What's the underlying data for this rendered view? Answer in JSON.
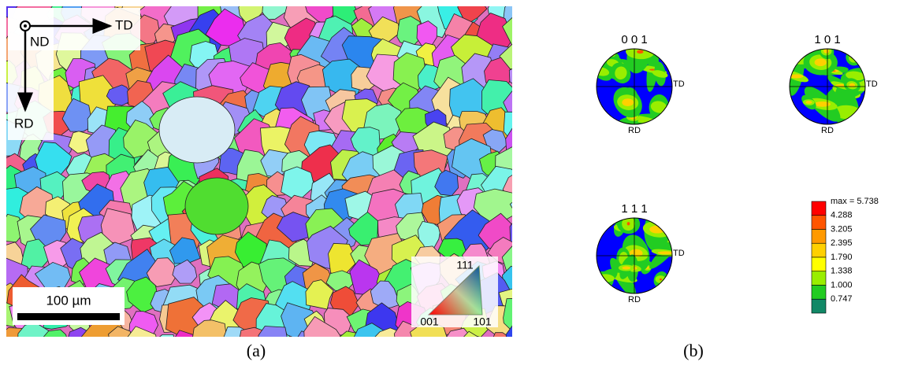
{
  "panel_a": {
    "orientation": {
      "nd": "ND",
      "td": "TD",
      "rd": "RD"
    },
    "scale_bar": "100 µm",
    "ipf_key": {
      "top": "111",
      "left": "001",
      "right": "101"
    },
    "caption": "(a)"
  },
  "panel_b": {
    "pole_figures": [
      {
        "title": "0 0 1",
        "x_label": "TD",
        "y_label": "RD"
      },
      {
        "title": "1 0 1",
        "x_label": "TD",
        "y_label": "RD"
      },
      {
        "title": "1 1 1",
        "x_label": "TD",
        "y_label": "RD"
      }
    ],
    "legend": {
      "max_label": "max = 5.738",
      "levels": [
        "4.288",
        "3.205",
        "2.395",
        "1.790",
        "1.338",
        "1.000",
        "0.747"
      ],
      "colors": [
        "#ff0000",
        "#ff5500",
        "#ff9900",
        "#ffd000",
        "#ffff00",
        "#99ee00",
        "#22cc22",
        "#118866",
        "#0000ff"
      ]
    },
    "caption": "(b)"
  }
}
